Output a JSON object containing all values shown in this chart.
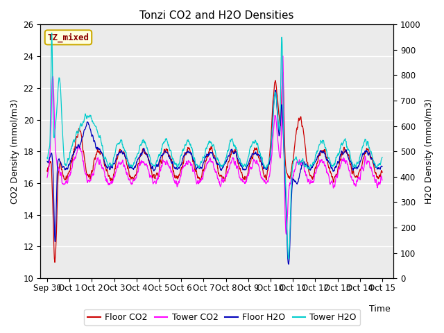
{
  "title": "Tonzi CO2 and H2O Densities",
  "xlabel": "Time",
  "ylabel_left": "CO2 Density (mmol/m3)",
  "ylabel_right": "H2O Density (mmol/m3)",
  "annotation": "TZ_mixed",
  "ylim_left": [
    10,
    26
  ],
  "ylim_right": [
    0,
    1000
  ],
  "yticks_left": [
    10,
    12,
    14,
    16,
    18,
    20,
    22,
    24,
    26
  ],
  "yticks_right": [
    0,
    100,
    200,
    300,
    400,
    500,
    600,
    700,
    800,
    900,
    1000
  ],
  "xtick_labels": [
    "Sep 30",
    "Oct 1",
    "Oct 2",
    "Oct 3",
    "Oct 4",
    "Oct 5",
    "Oct 6",
    "Oct 7",
    "Oct 8",
    "Oct 9",
    "Oct 10",
    "Oct 11",
    "Oct 12",
    "Oct 13",
    "Oct 14",
    "Oct 15"
  ],
  "legend_entries": [
    "Floor CO2",
    "Tower CO2",
    "Floor H2O",
    "Tower H2O"
  ],
  "colors": {
    "floor_co2": "#cc0000",
    "tower_co2": "#ff00ff",
    "floor_h2o": "#0000bb",
    "tower_h2o": "#00cccc"
  },
  "background_color": "#ebebeb",
  "title_fontsize": 11,
  "axis_fontsize": 9,
  "tick_fontsize": 8.5,
  "linewidth": 0.9
}
